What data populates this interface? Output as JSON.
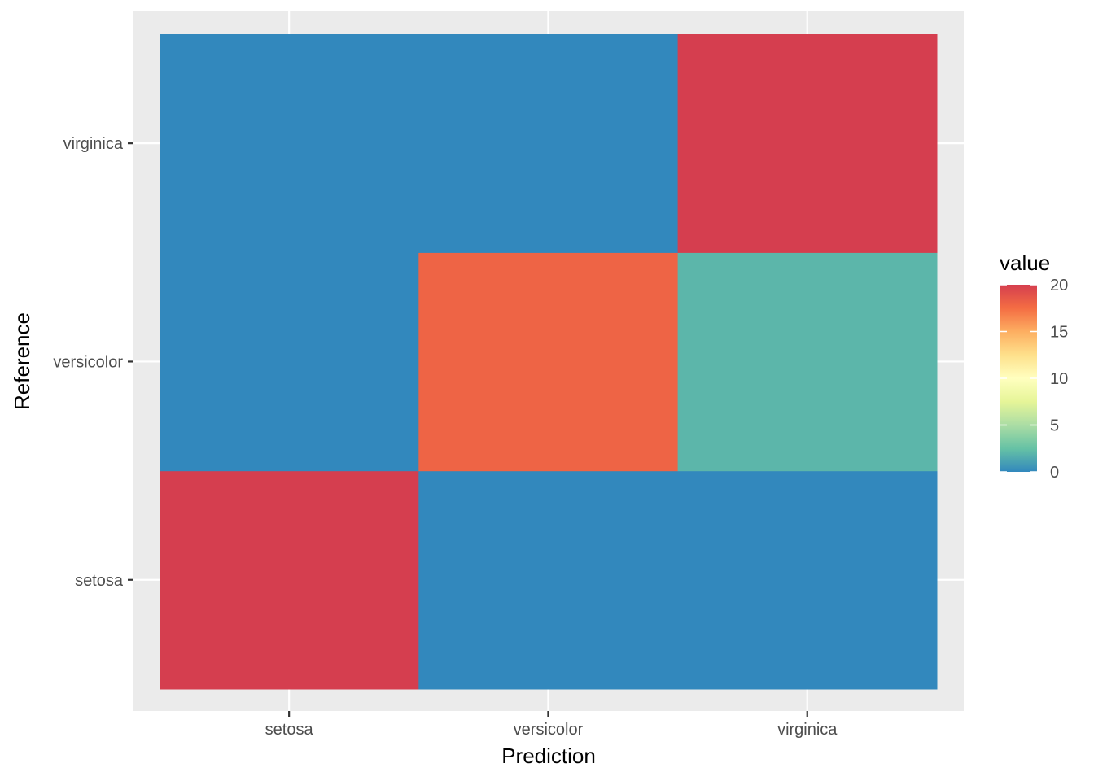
{
  "chart_data": {
    "type": "heatmap",
    "title": "",
    "xlabel": "Prediction",
    "ylabel": "Reference",
    "x_categories": [
      "setosa",
      "versicolor",
      "virginica"
    ],
    "y_categories": [
      "setosa",
      "versicolor",
      "virginica"
    ],
    "cells": [
      {
        "x": "setosa",
        "y": "setosa",
        "value": 20
      },
      {
        "x": "versicolor",
        "y": "setosa",
        "value": 0
      },
      {
        "x": "virginica",
        "y": "setosa",
        "value": 0
      },
      {
        "x": "setosa",
        "y": "versicolor",
        "value": 0
      },
      {
        "x": "versicolor",
        "y": "versicolor",
        "value": 18
      },
      {
        "x": "virginica",
        "y": "versicolor",
        "value": 2
      },
      {
        "x": "setosa",
        "y": "virginica",
        "value": 0
      },
      {
        "x": "versicolor",
        "y": "virginica",
        "value": 0
      },
      {
        "x": "virginica",
        "y": "virginica",
        "value": 20
      }
    ],
    "legend": {
      "title": "value",
      "position": "right",
      "range": [
        0,
        20
      ],
      "breaks": [
        0,
        5,
        10,
        15,
        20
      ],
      "colors": [
        "#3288bd",
        "#66c2a5",
        "#abdda4",
        "#e6f598",
        "#ffffbf",
        "#fee08b",
        "#fdae61",
        "#f46d43",
        "#d53e4f"
      ]
    },
    "panel_background": "#ebebeb",
    "grid": true
  }
}
